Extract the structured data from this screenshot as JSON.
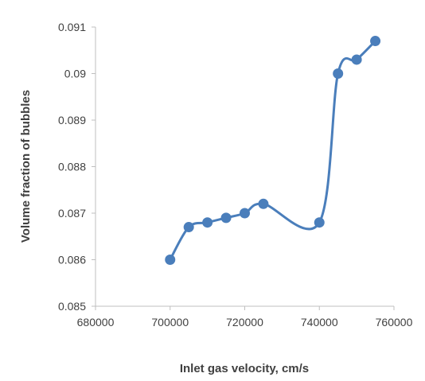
{
  "chart_data": {
    "type": "line",
    "title": "",
    "xlabel": "Inlet gas velocity, cm/s",
    "ylabel": "Volume fraction of bubbles",
    "xlim": [
      680000,
      760000
    ],
    "ylim": [
      0.085,
      0.091
    ],
    "x_ticks": [
      "680000",
      "700000",
      "720000",
      "740000",
      "760000"
    ],
    "y_ticks": [
      "0.085",
      "0.086",
      "0.087",
      "0.088",
      "0.089",
      "0.09",
      "0.091"
    ],
    "grid": false,
    "legend": "none",
    "series": [
      {
        "x": [
          700000,
          705000,
          710000,
          715000,
          720000,
          725000,
          740000,
          745000,
          750000,
          755000
        ],
        "y": [
          0.086,
          0.0867,
          0.0868,
          0.0869,
          0.087,
          0.0872,
          0.0868,
          0.09,
          0.0903,
          0.0907
        ],
        "color": "#4a7ebb",
        "smooth": true,
        "markers": true
      }
    ]
  }
}
